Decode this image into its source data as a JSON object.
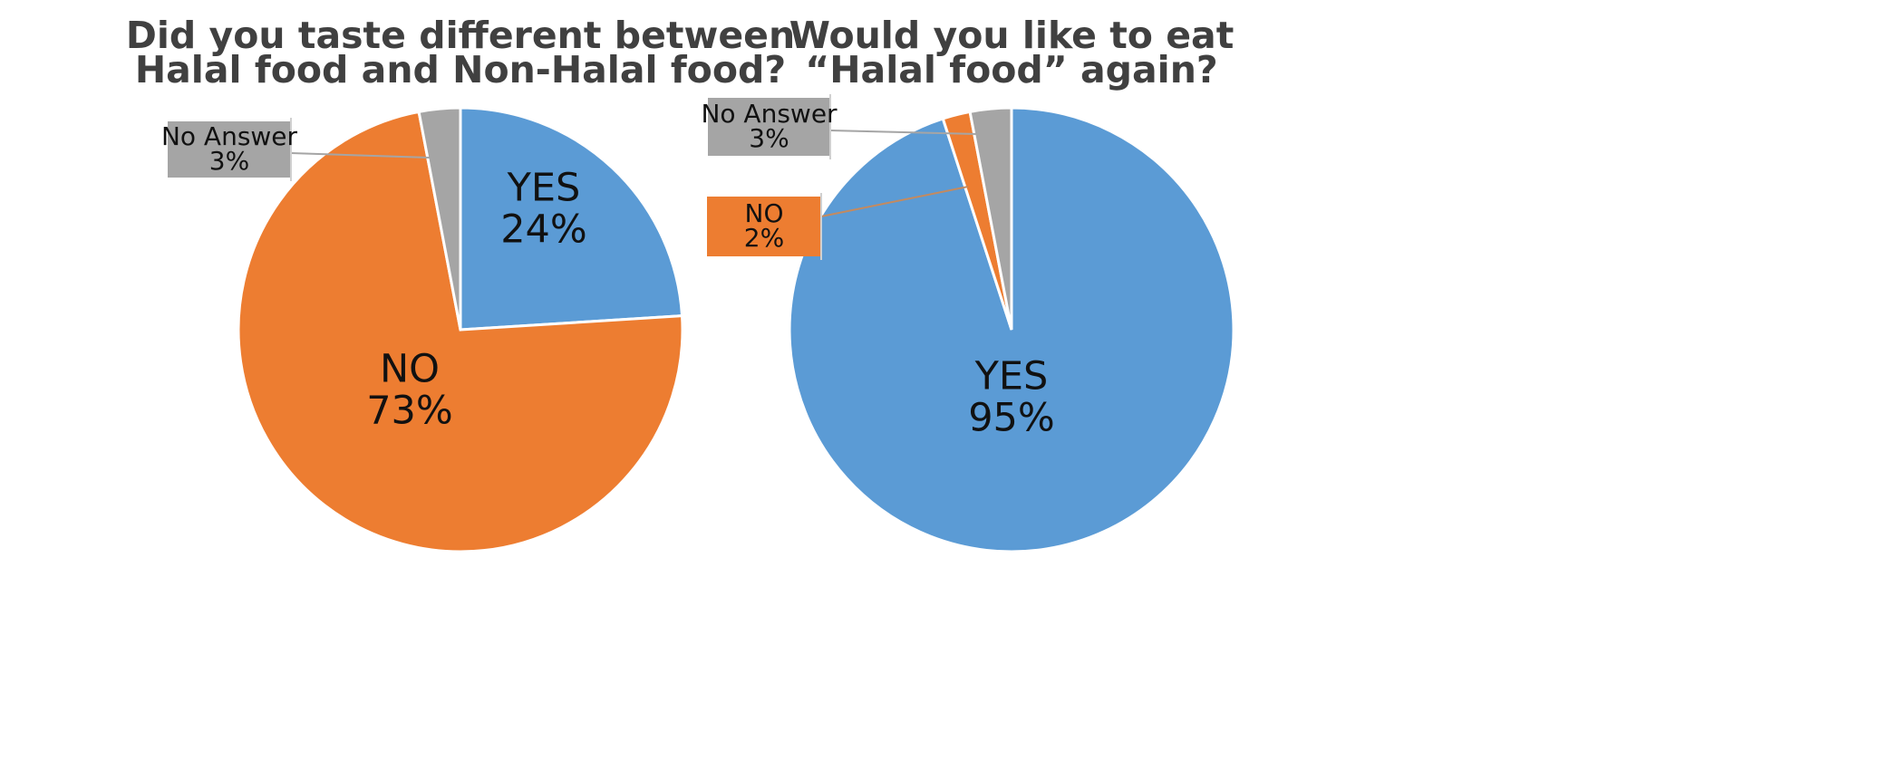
{
  "chart_data": [
    {
      "type": "pie",
      "title_lines": [
        "Did you taste different between",
        "Halal food and Non-Halal food?"
      ],
      "slices": [
        {
          "label": "YES",
          "value": 24,
          "display": "24%",
          "color": "#5B9BD5",
          "label_style": "inside"
        },
        {
          "label": "NO",
          "value": 73,
          "display": "73%",
          "color": "#ED7D31",
          "label_style": "inside"
        },
        {
          "label": "No Answer",
          "value": 3,
          "display": "3%",
          "color": "#A5A5A5",
          "label_style": "callout"
        }
      ]
    },
    {
      "type": "pie",
      "title_lines": [
        "Would you like to eat",
        "“Halal food” again?"
      ],
      "slices": [
        {
          "label": "YES",
          "value": 95,
          "display": "95%",
          "color": "#5B9BD5",
          "label_style": "inside"
        },
        {
          "label": "NO",
          "value": 2,
          "display": "2%",
          "color": "#ED7D31",
          "label_style": "callout"
        },
        {
          "label": "No Answer",
          "value": 3,
          "display": "3%",
          "color": "#A5A5A5",
          "label_style": "callout"
        }
      ]
    }
  ]
}
